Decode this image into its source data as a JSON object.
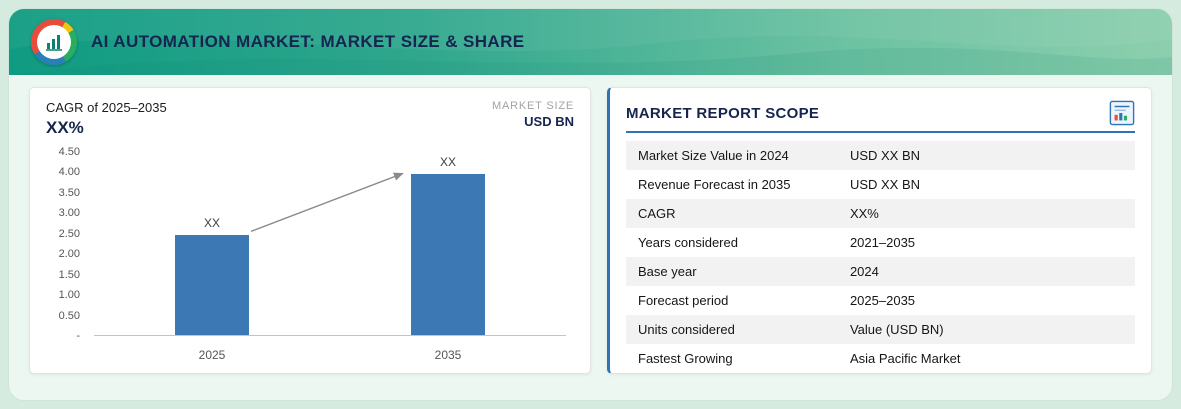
{
  "header": {
    "title": "AI AUTOMATION MARKET: MARKET SIZE & SHARE"
  },
  "left_panel": {
    "cagr_label": "CAGR of 2025–2035",
    "cagr_value": "XX%",
    "market_size_label": "MARKET SIZE",
    "market_size_unit": "USD BN"
  },
  "chart_data": {
    "type": "bar",
    "title": "",
    "categories": [
      "2025",
      "2035"
    ],
    "values": [
      2.45,
      3.95
    ],
    "data_labels": [
      "XX",
      "XX"
    ],
    "ylim": [
      0,
      4.5
    ],
    "yticks": [
      {
        "value": 4.5,
        "label": "4.50"
      },
      {
        "value": 4.0,
        "label": "4.00"
      },
      {
        "value": 3.5,
        "label": "3.50"
      },
      {
        "value": 3.0,
        "label": "3.00"
      },
      {
        "value": 2.5,
        "label": "2.50"
      },
      {
        "value": 2.0,
        "label": "2.00"
      },
      {
        "value": 1.5,
        "label": "1.50"
      },
      {
        "value": 1.0,
        "label": "1.00"
      },
      {
        "value": 0.5,
        "label": "0.50"
      },
      {
        "value": 0.0,
        "label": "-"
      }
    ],
    "bar_color": "#3c78b4",
    "annotation": "growth-arrow",
    "legend": "none",
    "grid": "off"
  },
  "report_scope": {
    "title": "MARKET REPORT SCOPE",
    "icon": "report-icon",
    "rows": [
      {
        "label": "Market Size Value in 2024",
        "value": "USD XX BN"
      },
      {
        "label": "Revenue Forecast in 2035",
        "value": "USD XX BN"
      },
      {
        "label": "CAGR",
        "value": "XX%"
      },
      {
        "label": "Years considered",
        "value": "2021–2035"
      },
      {
        "label": "Base year",
        "value": "2024"
      },
      {
        "label": "Forecast period",
        "value": "2025–2035"
      },
      {
        "label": "Units considered",
        "value": "Value (USD BN)"
      },
      {
        "label": "Fastest Growing",
        "value": "Asia Pacific Market"
      }
    ]
  },
  "colors": {
    "accent_blue": "#2e75b6",
    "bar_blue": "#3c78b4",
    "navy": "#16254f",
    "header_teal": "#0f9b82",
    "alt_row": "#f2f2f2",
    "arrow_gray": "#8a8a8a"
  }
}
